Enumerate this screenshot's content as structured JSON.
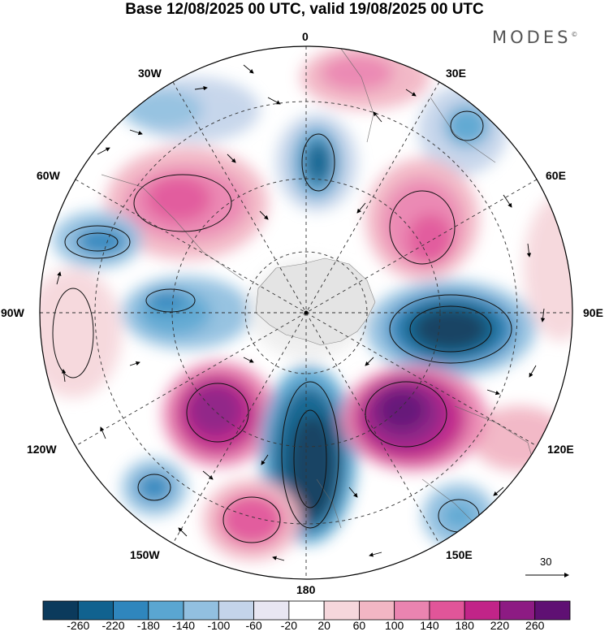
{
  "header": {
    "title": "Base 12/08/2025 00 UTC, valid 19/08/2025 00 UTC",
    "brand": "MODES"
  },
  "map": {
    "projection": "polar stereographic, south pole",
    "longitude_labels": {
      "0": "0",
      "30E": "30E",
      "60E": "60E",
      "90E": "90E",
      "120E": "120E",
      "150E": "150E",
      "180": "180",
      "150W": "150W",
      "120W": "120W",
      "90W": "90W",
      "60W": "60W",
      "30W": "30W"
    },
    "wind_reference": {
      "label": "30"
    }
  },
  "colorbar": {
    "colors": [
      "#0b3a5c",
      "#11628f",
      "#2f86bd",
      "#5aa6d1",
      "#92c0e0",
      "#c4d4ea",
      "#e8e6f2",
      "#ffffff",
      "#f6d7dc",
      "#f2b6c4",
      "#ea84b0",
      "#e15599",
      "#c12488",
      "#8d1b83",
      "#5f1073"
    ],
    "ticks": [
      "-260",
      "-220",
      "-180",
      "-140",
      "-100",
      "-60",
      "-20",
      "20",
      "60",
      "100",
      "140",
      "180",
      "220",
      "260"
    ]
  }
}
